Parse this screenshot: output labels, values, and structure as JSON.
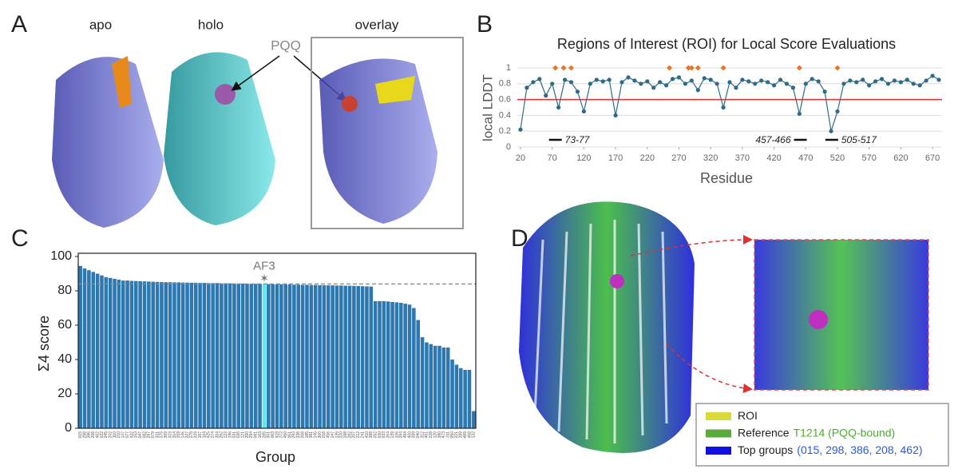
{
  "panels": {
    "A": {
      "letter": "A",
      "labels": [
        "apo",
        "holo",
        "overlay"
      ],
      "ligand": "PQQ"
    },
    "B": {
      "letter": "B",
      "chart_data": {
        "type": "scatter",
        "title": "Regions of Interest (ROI) for Local Score Evaluations",
        "x_label": "Residue",
        "y_label": "local LDDT",
        "xlim": [
          15,
          685
        ],
        "ylim": [
          0,
          1
        ],
        "xticks": [
          20,
          70,
          120,
          170,
          220,
          270,
          320,
          370,
          420,
          470,
          520,
          570,
          620,
          670
        ],
        "yticks": [
          0,
          0.2,
          0.4,
          0.6,
          0.8,
          1
        ],
        "grid": true,
        "color": "#2f6b86",
        "threshold": 0.6,
        "threshold_color": "#e03030",
        "x": [
          20,
          30,
          40,
          50,
          60,
          70,
          80,
          90,
          100,
          110,
          120,
          130,
          140,
          150,
          160,
          170,
          180,
          190,
          200,
          210,
          220,
          230,
          240,
          250,
          260,
          270,
          280,
          290,
          300,
          310,
          320,
          330,
          340,
          350,
          360,
          370,
          380,
          390,
          400,
          410,
          420,
          430,
          440,
          450,
          460,
          470,
          480,
          490,
          500,
          510,
          520,
          530,
          540,
          550,
          560,
          570,
          580,
          590,
          600,
          610,
          620,
          630,
          640,
          650,
          660,
          670,
          680
        ],
        "values": [
          0.22,
          0.75,
          0.82,
          0.86,
          0.65,
          0.8,
          0.5,
          0.85,
          0.82,
          0.7,
          0.45,
          0.8,
          0.85,
          0.83,
          0.85,
          0.4,
          0.82,
          0.88,
          0.84,
          0.8,
          0.83,
          0.75,
          0.82,
          0.78,
          0.86,
          0.88,
          0.8,
          0.84,
          0.72,
          0.87,
          0.85,
          0.8,
          0.5,
          0.82,
          0.75,
          0.85,
          0.83,
          0.8,
          0.84,
          0.82,
          0.78,
          0.85,
          0.8,
          0.75,
          0.42,
          0.8,
          0.86,
          0.83,
          0.7,
          0.2,
          0.45,
          0.8,
          0.84,
          0.82,
          0.85,
          0.78,
          0.83,
          0.86,
          0.8,
          0.84,
          0.82,
          0.85,
          0.8,
          0.78,
          0.84,
          0.9,
          0.85
        ],
        "roi_markers": {
          "color": "#e8742c",
          "x": [
            75,
            88,
            100,
            255,
            285,
            290,
            300,
            340,
            460,
            520
          ],
          "y": [
            1,
            1,
            1,
            1,
            1,
            1,
            1,
            1,
            1,
            1
          ]
        },
        "roi_annotations": [
          {
            "label": "73-77",
            "range": [
              73,
              77
            ]
          },
          {
            "label": "457-466",
            "range": [
              457,
              466
            ]
          },
          {
            "label": "505-517",
            "range": [
              505,
              517
            ]
          }
        ]
      }
    },
    "C": {
      "letter": "C",
      "chart_data": {
        "type": "bar",
        "x_label": "Group",
        "y_label": "Σ4 score",
        "ylim": [
          0,
          100
        ],
        "yticks": [
          0,
          20,
          40,
          60,
          80,
          100
        ],
        "color": "#2e78b2",
        "highlight_color": "#5fe8ec",
        "reference_line": 84,
        "annotation": {
          "text": "AF3",
          "category_index": 43
        },
        "categories": [
          "015",
          "298",
          "386",
          "208",
          "462",
          "022",
          "345",
          "202",
          "110",
          "210",
          "137",
          "077",
          "432",
          "153",
          "047",
          "082",
          "287",
          "079",
          "331",
          "375",
          "369",
          "323",
          "314",
          "159",
          "136",
          "227",
          "275",
          "329",
          "167",
          "164",
          "425",
          "274",
          "304",
          "262",
          "122",
          "196",
          "031",
          "026",
          "121",
          "290",
          "294",
          "081",
          "163",
          "285",
          "301",
          "063",
          "419",
          "272",
          "450",
          "051",
          "293",
          "338",
          "008",
          "185",
          "381",
          "145",
          "300",
          "018",
          "456",
          "147",
          "135",
          "220",
          "198",
          "282",
          "207",
          "212",
          "241",
          "410",
          "388",
          "052",
          "030",
          "033",
          "264",
          "139",
          "106",
          "284",
          "494",
          "400",
          "399",
          "040",
          "312",
          "461",
          "228",
          "120",
          "380",
          "473",
          "311",
          "050",
          "221",
          "289",
          "489",
          "468",
          "132"
        ],
        "values": [
          94.5,
          93,
          92,
          91,
          90,
          89,
          88,
          87.5,
          87,
          86.5,
          86,
          86,
          85.8,
          85.7,
          85.6,
          85.5,
          85.4,
          85.3,
          85.2,
          85.1,
          85,
          85,
          84.9,
          84.9,
          84.8,
          84.8,
          84.7,
          84.7,
          84.6,
          84.6,
          84.5,
          84.5,
          84.5,
          84.4,
          84.4,
          84.3,
          84.3,
          84.2,
          84.2,
          84.2,
          84.1,
          84.1,
          84.1,
          84,
          83.9,
          83.9,
          83.8,
          83.8,
          83.7,
          83.7,
          83.6,
          83.6,
          83.5,
          83.5,
          83.4,
          83.4,
          83.3,
          83.3,
          83.2,
          83.2,
          83.1,
          83.1,
          83,
          83,
          82.9,
          82.8,
          82.7,
          82.6,
          82.5,
          74,
          74,
          74,
          73.8,
          73.5,
          73.3,
          73,
          72.5,
          72,
          70,
          63,
          53,
          50,
          49,
          48,
          48,
          47,
          47,
          40,
          37,
          35,
          34,
          34,
          10
        ]
      }
    },
    "D": {
      "letter": "D",
      "legend": [
        {
          "name": "ROI",
          "color": "#d9d93a"
        },
        {
          "name": "Reference",
          "detail": "T1214 (PQQ-bound)",
          "color": "#5aaa3c",
          "detail_color": "#4caf2a"
        },
        {
          "name": "Top groups",
          "detail": "(015, 298, 386, 208, 462)",
          "color": "#1010e0",
          "detail_color": "#2a5ae0"
        }
      ]
    }
  }
}
